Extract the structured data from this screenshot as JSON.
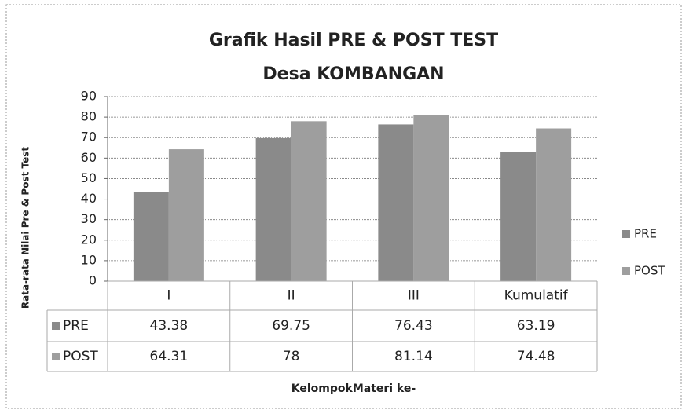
{
  "chart_data": {
    "type": "bar",
    "title": [
      "Grafik Hasil PRE & POST TEST",
      "Desa KOMBANGAN"
    ],
    "y_label": "Rata-rata Nilai Pre & Post Test",
    "x_label": "KelompokMateri ke-",
    "categories": [
      "I",
      "II",
      "III",
      "Kumulatif"
    ],
    "series": [
      {
        "name": "PRE",
        "color": "#8a8a8a",
        "values": [
          43.38,
          69.75,
          76.43,
          63.19
        ]
      },
      {
        "name": "POST",
        "color": "#9e9e9e",
        "values": [
          64.31,
          78,
          81.14,
          74.48
        ]
      }
    ],
    "ylim": [
      0,
      90
    ],
    "yticks": [
      0,
      10,
      20,
      30,
      40,
      50,
      60,
      70,
      80,
      90
    ],
    "grid": true,
    "legend": "right",
    "data_table": true
  }
}
